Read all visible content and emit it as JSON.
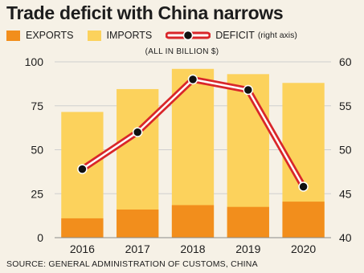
{
  "colors": {
    "exports": "#f28e1c",
    "imports": "#fcd25c",
    "deficit_line": "#d9262a",
    "deficit_marker": "#111111",
    "grid": "#cfcfcf",
    "background": "#f6f1e6"
  },
  "header": {
    "title": "Trade deficit with China narrows",
    "unit_note": "(ALL IN BILLION $)"
  },
  "legend": {
    "exports": "EXPORTS",
    "imports": "IMPORTS",
    "deficit": "DEFICIT",
    "deficit_note": "(right axis)"
  },
  "footer": {
    "source": "SOURCE: GENERAL ADMINISTRATION OF CUSTOMS, CHINA"
  },
  "chart_data": {
    "type": "bar",
    "title": "Trade deficit with China narrows",
    "subtitle": "(ALL IN BILLION $)",
    "categories": [
      "2016",
      "2017",
      "2018",
      "2019",
      "2020"
    ],
    "series": [
      {
        "name": "EXPORTS",
        "type": "bar",
        "axis": "left",
        "values": [
          11,
          16,
          18.5,
          17.5,
          20.5
        ]
      },
      {
        "name": "IMPORTS",
        "type": "bar",
        "axis": "left",
        "values": [
          71.5,
          84.5,
          96,
          93,
          88
        ]
      },
      {
        "name": "DEFICIT",
        "type": "line",
        "axis": "right",
        "values": [
          47.8,
          52,
          58,
          56.8,
          45.8
        ]
      }
    ],
    "ylim": [
      0,
      100
    ],
    "yticks": [
      0,
      25,
      50,
      75,
      100
    ],
    "y2lim": [
      40,
      60
    ],
    "y2ticks": [
      40,
      45,
      50,
      55,
      60
    ],
    "grid": "horizontal",
    "legend_position": "top"
  }
}
